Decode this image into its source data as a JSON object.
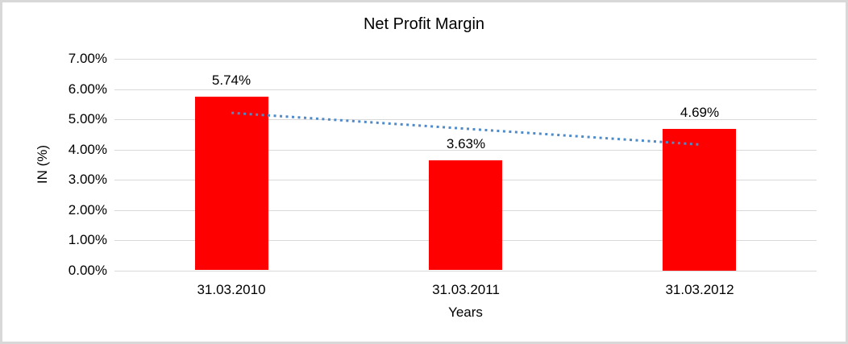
{
  "chart_data": {
    "type": "bar",
    "title": "Net Profit Margin",
    "xlabel": "Years",
    "ylabel": "IN (%)",
    "categories": [
      "31.03.2010",
      "31.03.2011",
      "31.03.2012"
    ],
    "values": [
      5.74,
      3.63,
      4.69
    ],
    "value_labels": [
      "5.74%",
      "3.63%",
      "4.69%"
    ],
    "ylim": [
      0,
      7
    ],
    "ytick_step": 1,
    "ytick_labels": [
      "0.00%",
      "1.00%",
      "2.00%",
      "3.00%",
      "4.00%",
      "5.00%",
      "6.00%",
      "7.00%"
    ],
    "grid": true,
    "legend": "none",
    "bar_color": "#ff0000",
    "gridline_color": "#d9d9d9",
    "frame_color": "#d8d8d8",
    "trendline": {
      "type": "linear",
      "style": "dotted",
      "color": "#4f8bc9"
    }
  }
}
